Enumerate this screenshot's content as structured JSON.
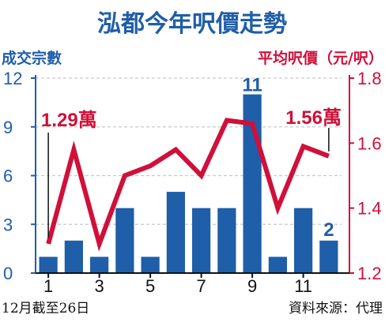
{
  "colors": {
    "bar": "#1f5ea8",
    "line": "#d0103a",
    "axis_left": "#1f5ea8",
    "axis_right": "#d0103a",
    "grid": "#c9c9c9",
    "text": "#111111"
  },
  "chart_data": {
    "type": "bar",
    "title": "泓都今年呎價走勢",
    "categories": [
      "1",
      "2",
      "3",
      "4",
      "5",
      "6",
      "7",
      "8",
      "9",
      "10",
      "11",
      "12"
    ],
    "x_tick_labels": [
      "1",
      "3",
      "5",
      "7",
      "9",
      "11"
    ],
    "series": [
      {
        "name": "成交宗數",
        "type": "bar",
        "axis": "left",
        "values": [
          1,
          2,
          1,
          4,
          1,
          5,
          4,
          4,
          11,
          1,
          4,
          2
        ]
      },
      {
        "name": "平均呎價（元/呎）",
        "type": "line",
        "axis": "right",
        "values": [
          1.29,
          1.58,
          1.29,
          1.5,
          1.53,
          1.58,
          1.5,
          1.67,
          1.66,
          1.4,
          1.59,
          1.56
        ]
      }
    ],
    "left_axis": {
      "label": "成交宗數",
      "ylim": [
        0,
        12
      ],
      "ticks": [
        "0",
        "3",
        "6",
        "9",
        "12"
      ]
    },
    "right_axis": {
      "label": "平均呎價（元/呎）",
      "ylim": [
        1.2,
        1.8
      ],
      "ticks": [
        "1.2",
        "1.4",
        "1.6",
        "1.8"
      ]
    },
    "grid": "horizontal dashed",
    "annotations": [
      {
        "text": "1.29萬",
        "points_to": "1"
      },
      {
        "text": "1.56萬",
        "points_to": "12"
      },
      {
        "text": "11",
        "points_to": "9"
      },
      {
        "text": "2",
        "points_to": "12"
      }
    ],
    "footnote_left": "12月截至26日",
    "footnote_right": "資料來源：代理"
  }
}
